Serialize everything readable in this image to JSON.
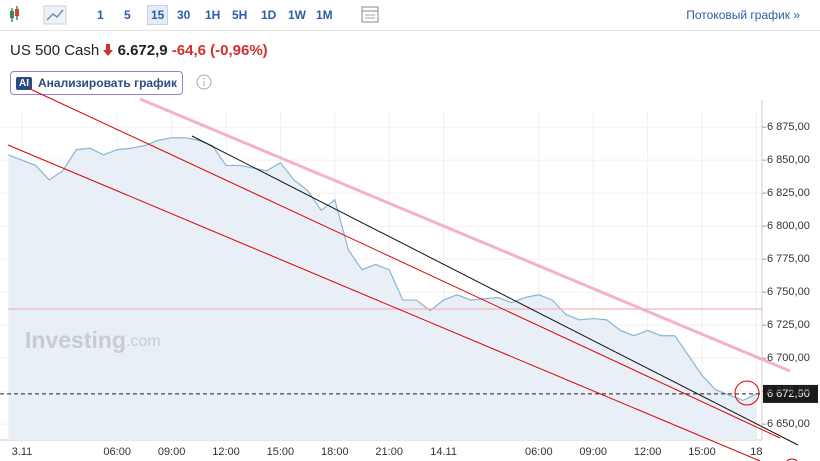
{
  "toolbar": {
    "intervals": [
      "1",
      "5",
      "15",
      "30",
      "1H",
      "5H",
      "1D",
      "1W",
      "1M"
    ],
    "active_interval": "15",
    "stream_link": "Потоковый график »"
  },
  "header": {
    "instrument": "US 500 Cash",
    "price": "6.672,9",
    "change": "-64,6",
    "change_pct": "(-0,96%)"
  },
  "ai_button": {
    "badge": "AI",
    "label": "Анализировать график"
  },
  "watermark": {
    "brand": "Investing",
    "suffix": ".com"
  },
  "chart_data": {
    "type": "area",
    "color": "#8ab4d6",
    "fill": "#e8eff7",
    "grid": true,
    "categories": [
      null,
      "3.11",
      null,
      null,
      null,
      null,
      null,
      null,
      "06:00",
      null,
      null,
      null,
      "09:00",
      null,
      null,
      null,
      "12:00",
      null,
      null,
      null,
      "15:00",
      null,
      null,
      null,
      "18:00",
      null,
      null,
      null,
      "21:00",
      null,
      null,
      null,
      "14.11",
      null,
      null,
      null,
      null,
      null,
      null,
      "06:00",
      null,
      null,
      null,
      "09:00",
      null,
      null,
      null,
      "12:00",
      null,
      null,
      null,
      "15:00",
      null,
      null,
      null,
      "18"
    ],
    "values": [
      6854,
      6850,
      6846,
      6835,
      6842,
      6858,
      6859,
      6854,
      6858,
      6859,
      6861,
      6865,
      6867,
      6867,
      6865,
      6861,
      6846,
      6846,
      6844,
      6842,
      6848,
      6835,
      6827,
      6812,
      6820,
      6782,
      6767,
      6771,
      6767,
      6744,
      6744,
      6736,
      6744,
      6748,
      6744,
      6745,
      6746,
      6742,
      6746,
      6748,
      6744,
      6733,
      6729,
      6730,
      6729,
      6721,
      6717,
      6721,
      6717,
      6717,
      6702,
      6687,
      6676,
      6672,
      6668,
      6672.9
    ],
    "ylim": [
      6638,
      6888
    ],
    "yticks": [
      {
        "value": 6650,
        "label": "6 650,00"
      },
      {
        "value": 6675,
        "label": "6 675,00"
      },
      {
        "value": 6700,
        "label": "6 700,00"
      },
      {
        "value": 6725,
        "label": "6 725,00"
      },
      {
        "value": 6750,
        "label": "6 750,00"
      },
      {
        "value": 6775,
        "label": "6 775,00"
      },
      {
        "value": 6800,
        "label": "6 800,00"
      },
      {
        "value": 6825,
        "label": "6 825,00"
      },
      {
        "value": 6850,
        "label": "6 850,00"
      },
      {
        "value": 6875,
        "label": "6 875,00"
      }
    ],
    "last_price": {
      "value": 6672.9,
      "label": "6 672,90"
    }
  }
}
